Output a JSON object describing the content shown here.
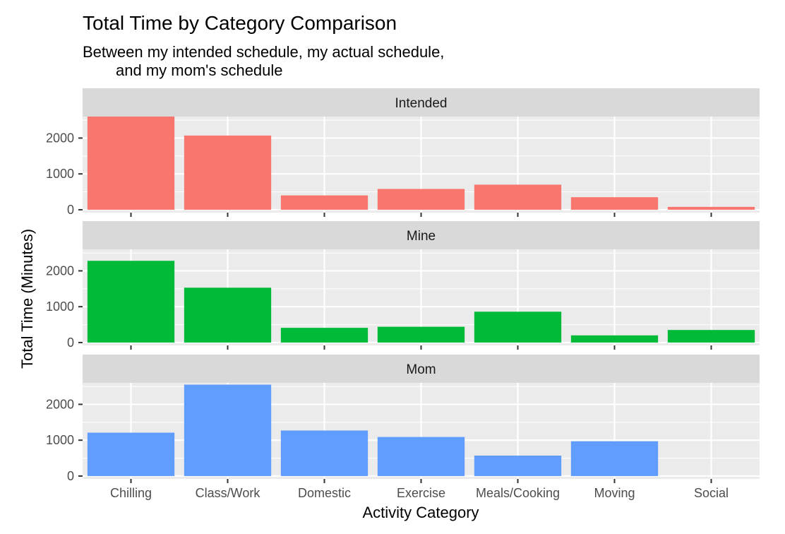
{
  "chart_data": {
    "type": "bar",
    "title": "Total Time by Category Comparison",
    "subtitle_lines": [
      "Between my intended schedule, my actual schedule,",
      "and my mom's schedule"
    ],
    "xlabel": "Activity Category",
    "ylabel": "Total Time (Minutes)",
    "categories": [
      "Chilling",
      "Class/Work",
      "Domestic",
      "Exercise",
      "Meals/Cooking",
      "Moving",
      "Social"
    ],
    "ylim": [
      -80,
      2600
    ],
    "yticks": [
      0,
      1000,
      2000
    ],
    "grid": true,
    "legend": "none",
    "facets": [
      {
        "name": "Intended",
        "color": "#F8766D",
        "values": [
          2600,
          2070,
          400,
          580,
          700,
          350,
          80
        ]
      },
      {
        "name": "Mine",
        "color": "#00BA38",
        "values": [
          2280,
          1530,
          410,
          440,
          860,
          200,
          350
        ]
      },
      {
        "name": "Mom",
        "color": "#619CFF",
        "values": [
          1210,
          2550,
          1270,
          1090,
          570,
          970,
          0
        ]
      }
    ]
  }
}
